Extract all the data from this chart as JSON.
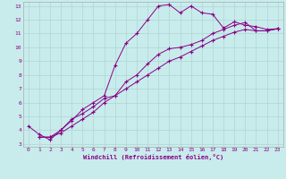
{
  "xlabel": "Windchill (Refroidissement éolien,°C)",
  "background_color": "#c8ecec",
  "line_color": "#880088",
  "grid_color": "#b0d4d4",
  "x_min": 0,
  "x_max": 23,
  "y_min": 3,
  "y_max": 13,
  "xticks": [
    0,
    1,
    2,
    3,
    4,
    5,
    6,
    7,
    8,
    9,
    10,
    11,
    12,
    13,
    14,
    15,
    16,
    17,
    18,
    19,
    20,
    21,
    22,
    23
  ],
  "yticks": [
    3,
    4,
    5,
    6,
    7,
    8,
    9,
    10,
    11,
    12,
    13
  ],
  "line1_x": [
    0,
    1,
    2,
    3,
    4,
    5,
    6,
    7,
    8,
    9,
    10,
    11,
    12,
    13,
    14,
    15,
    16,
    17,
    18,
    19,
    20,
    21,
    22,
    23
  ],
  "line1_y": [
    4.3,
    3.7,
    3.3,
    4.0,
    4.7,
    5.5,
    6.0,
    6.5,
    8.7,
    10.3,
    11.0,
    12.0,
    13.0,
    13.1,
    12.5,
    13.0,
    12.5,
    12.4,
    11.4,
    11.85,
    11.6,
    11.5,
    11.3,
    11.35
  ],
  "line2_x": [
    1,
    2,
    3,
    4,
    5,
    6,
    7,
    8,
    9,
    10,
    11,
    12,
    13,
    14,
    15,
    16,
    17,
    18,
    19,
    20,
    21,
    22,
    23
  ],
  "line2_y": [
    3.5,
    3.5,
    4.0,
    4.8,
    5.2,
    5.7,
    6.3,
    6.5,
    7.5,
    8.0,
    8.8,
    9.5,
    9.9,
    10.0,
    10.2,
    10.5,
    11.0,
    11.3,
    11.6,
    11.8,
    11.2,
    11.2,
    11.35
  ],
  "line3_x": [
    1,
    2,
    3,
    4,
    5,
    6,
    7,
    8,
    9,
    10,
    11,
    12,
    13,
    14,
    15,
    16,
    17,
    18,
    19,
    20,
    21,
    22,
    23
  ],
  "line3_y": [
    3.5,
    3.5,
    3.8,
    4.3,
    4.8,
    5.3,
    6.0,
    6.5,
    7.0,
    7.5,
    8.0,
    8.5,
    9.0,
    9.3,
    9.7,
    10.1,
    10.5,
    10.8,
    11.1,
    11.3,
    11.2,
    11.2,
    11.35
  ]
}
